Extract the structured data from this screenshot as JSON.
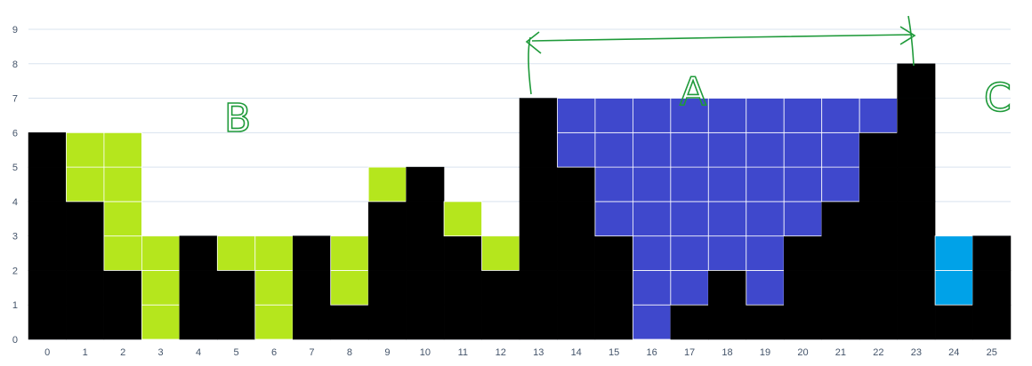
{
  "chart_data": {
    "type": "bar",
    "stacked": true,
    "categories": [
      "0",
      "1",
      "2",
      "3",
      "4",
      "5",
      "6",
      "7",
      "8",
      "9",
      "10",
      "11",
      "12",
      "13",
      "14",
      "15",
      "16",
      "17",
      "18",
      "19",
      "20",
      "21",
      "22",
      "23",
      "24",
      "25"
    ],
    "ylim": [
      0,
      9
    ],
    "yticks": [
      0,
      1,
      2,
      3,
      4,
      5,
      6,
      7,
      8,
      9
    ],
    "grid": true,
    "series": [
      {
        "color": "#000000",
        "values": [
          6,
          4,
          2,
          0,
          3,
          2,
          0,
          3,
          1,
          4,
          5,
          3,
          2,
          7,
          5,
          3,
          0,
          1,
          2,
          1,
          3,
          4,
          6,
          8,
          1,
          3
        ]
      },
      {
        "color": "#b5e61d",
        "values": [
          0,
          2,
          4,
          3,
          0,
          1,
          3,
          0,
          2,
          1,
          0,
          1,
          1,
          0,
          0,
          0,
          0,
          0,
          0,
          0,
          0,
          0,
          0,
          0,
          0,
          0
        ]
      },
      {
        "color": "#3f48cc",
        "values": [
          0,
          0,
          0,
          0,
          0,
          0,
          0,
          0,
          0,
          0,
          0,
          0,
          0,
          0,
          2,
          4,
          7,
          6,
          5,
          6,
          4,
          3,
          1,
          0,
          0,
          0
        ]
      },
      {
        "color": "#00a2e8",
        "values": [
          0,
          0,
          0,
          0,
          0,
          0,
          0,
          0,
          0,
          0,
          0,
          0,
          0,
          0,
          0,
          0,
          0,
          0,
          0,
          0,
          0,
          0,
          0,
          0,
          2,
          0
        ]
      }
    ],
    "annotations": [
      {
        "text": "B",
        "color": "#1f9a3a"
      },
      {
        "text": "A",
        "color": "#1f9a3a"
      },
      {
        "text": "C",
        "color": "#1f9a3a"
      }
    ]
  }
}
